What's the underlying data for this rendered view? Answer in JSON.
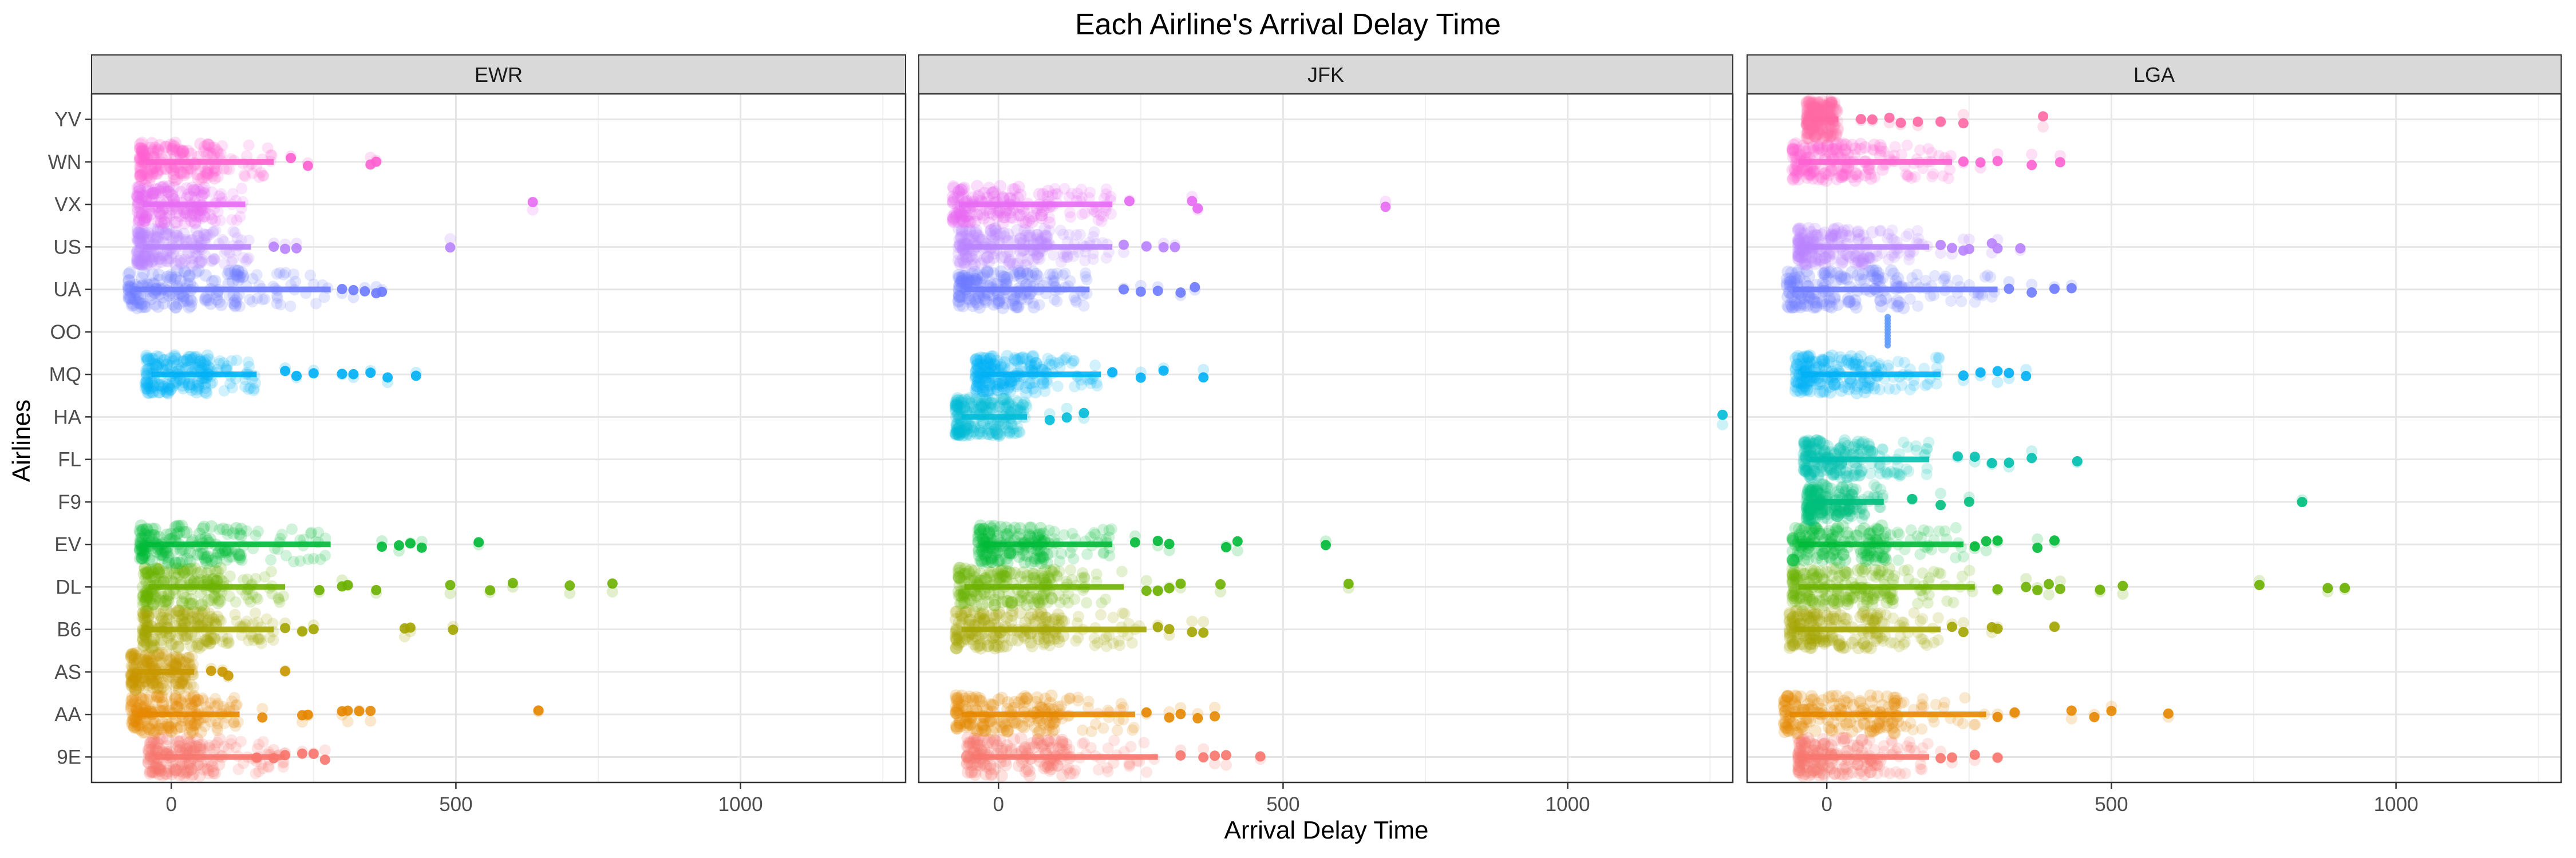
{
  "chart_data": {
    "type": "scatter",
    "title": "Each Airline's Arrival Delay Time",
    "xlabel": "Arrival Delay Time",
    "ylabel": "Airlines",
    "xlim": [
      -140,
      1290
    ],
    "x_ticks": [
      0,
      500,
      1000
    ],
    "x_tick_labels": [
      "0",
      "500",
      "1000"
    ],
    "categories": [
      "9E",
      "AA",
      "AS",
      "B6",
      "DL",
      "EV",
      "F9",
      "FL",
      "HA",
      "MQ",
      "OO",
      "UA",
      "US",
      "VX",
      "WN",
      "YV"
    ],
    "facets": [
      "EWR",
      "JFK",
      "LGA"
    ],
    "grid": true,
    "colors": {
      "9E": "#F8766D",
      "AA": "#E58700",
      "AS": "#C99800",
      "B6": "#A3A500",
      "DL": "#6BB100",
      "EV": "#00BA38",
      "F9": "#00BF7D",
      "FL": "#00C0AF",
      "HA": "#00BCD8",
      "MQ": "#00B0F6",
      "OO": "#619CFF",
      "UA": "#6E7BFF",
      "US": "#B983FF",
      "VX": "#E76BF3",
      "WN": "#FD61D1",
      "YV": "#FF67A4"
    },
    "ranges": {
      "EWR": {
        "9E": {
          "min": -40,
          "q99": 200,
          "max": 280,
          "outliers": [
            150,
            180,
            200,
            230,
            250,
            270
          ]
        },
        "AA": {
          "min": -70,
          "q99": 120,
          "max": 650,
          "outliers": [
            160,
            230,
            240,
            300,
            310,
            330,
            350,
            645
          ]
        },
        "AS": {
          "min": -70,
          "q99": 40,
          "max": 200,
          "outliers": [
            70,
            90,
            100,
            200
          ]
        },
        "B6": {
          "min": -50,
          "q99": 180,
          "max": 500,
          "outliers": [
            200,
            230,
            250,
            410,
            420,
            495
          ]
        },
        "DL": {
          "min": -50,
          "q99": 200,
          "max": 780,
          "outliers": [
            260,
            300,
            310,
            360,
            490,
            560,
            600,
            700,
            775
          ]
        },
        "EV": {
          "min": -55,
          "q99": 280,
          "max": 540,
          "outliers": [
            370,
            400,
            420,
            440,
            540
          ]
        },
        "MQ": {
          "min": -45,
          "q99": 150,
          "max": 430,
          "outliers": [
            200,
            220,
            250,
            300,
            320,
            350,
            380,
            430
          ]
        },
        "UA": {
          "min": -75,
          "q99": 280,
          "max": 370,
          "outliers": [
            300,
            320,
            340,
            360,
            370
          ]
        },
        "US": {
          "min": -60,
          "q99": 140,
          "max": 490,
          "outliers": [
            180,
            200,
            220,
            490
          ]
        },
        "VX": {
          "min": -60,
          "q99": 130,
          "max": 635,
          "outliers": [
            635
          ]
        },
        "WN": {
          "min": -55,
          "q99": 180,
          "max": 360,
          "outliers": [
            210,
            240,
            350,
            360
          ]
        }
      },
      "JFK": {
        "9E": {
          "min": -55,
          "q99": 280,
          "max": 460,
          "outliers": [
            320,
            360,
            380,
            400,
            460
          ]
        },
        "AA": {
          "min": -75,
          "q99": 240,
          "max": 380,
          "outliers": [
            260,
            300,
            320,
            350,
            380
          ]
        },
        "B6": {
          "min": -75,
          "q99": 260,
          "max": 370,
          "outliers": [
            280,
            300,
            340,
            360
          ]
        },
        "DL": {
          "min": -70,
          "q99": 220,
          "max": 620,
          "outliers": [
            260,
            280,
            300,
            320,
            390,
            615
          ]
        },
        "EV": {
          "min": -35,
          "q99": 200,
          "max": 580,
          "outliers": [
            240,
            280,
            300,
            400,
            420,
            575
          ]
        },
        "HA": {
          "min": -75,
          "q99": 50,
          "max": 1272,
          "outliers": [
            90,
            120,
            150,
            1272
          ]
        },
        "MQ": {
          "min": -40,
          "q99": 180,
          "max": 360,
          "outliers": [
            200,
            250,
            290,
            360
          ]
        },
        "UA": {
          "min": -70,
          "q99": 160,
          "max": 350,
          "outliers": [
            220,
            250,
            280,
            320,
            345
          ]
        },
        "US": {
          "min": -70,
          "q99": 200,
          "max": 310,
          "outliers": [
            220,
            260,
            290,
            310
          ]
        },
        "VX": {
          "min": -80,
          "q99": 200,
          "max": 680,
          "outliers": [
            230,
            340,
            350,
            680
          ]
        }
      },
      "LGA": {
        "9E": {
          "min": -50,
          "q99": 180,
          "max": 300,
          "outliers": [
            200,
            220,
            260,
            300
          ]
        },
        "AA": {
          "min": -75,
          "q99": 280,
          "max": 600,
          "outliers": [
            300,
            330,
            430,
            470,
            500,
            600
          ]
        },
        "B6": {
          "min": -65,
          "q99": 200,
          "max": 400,
          "outliers": [
            220,
            240,
            290,
            300,
            400
          ]
        },
        "DL": {
          "min": -60,
          "q99": 260,
          "max": 920,
          "outliers": [
            300,
            350,
            370,
            390,
            410,
            480,
            520,
            760,
            880,
            910
          ]
        },
        "EV": {
          "min": -60,
          "q99": 240,
          "max": 400,
          "outliers": [
            260,
            280,
            300,
            370,
            400
          ]
        },
        "F9": {
          "min": -35,
          "q99": 100,
          "max": 835,
          "outliers": [
            150,
            200,
            250,
            835
          ]
        },
        "FL": {
          "min": -40,
          "q99": 180,
          "max": 440,
          "outliers": [
            230,
            260,
            290,
            320,
            360,
            440
          ]
        },
        "MQ": {
          "min": -55,
          "q99": 200,
          "max": 360,
          "outliers": [
            240,
            270,
            300,
            320,
            350
          ]
        },
        "OO": {
          "min": 100,
          "q99": 107,
          "max": 107,
          "outliers": [
            107
          ]
        },
        "UA": {
          "min": -70,
          "q99": 300,
          "max": 430,
          "outliers": [
            320,
            360,
            400,
            430
          ]
        },
        "US": {
          "min": -50,
          "q99": 180,
          "max": 350,
          "outliers": [
            200,
            220,
            240,
            250,
            290,
            300,
            340
          ]
        },
        "WN": {
          "min": -60,
          "q99": 220,
          "max": 410,
          "outliers": [
            240,
            270,
            300,
            360,
            410
          ]
        },
        "YV": {
          "min": -35,
          "q99": 20,
          "max": 380,
          "outliers": [
            60,
            80,
            110,
            130,
            160,
            200,
            240,
            380
          ]
        }
      }
    }
  }
}
